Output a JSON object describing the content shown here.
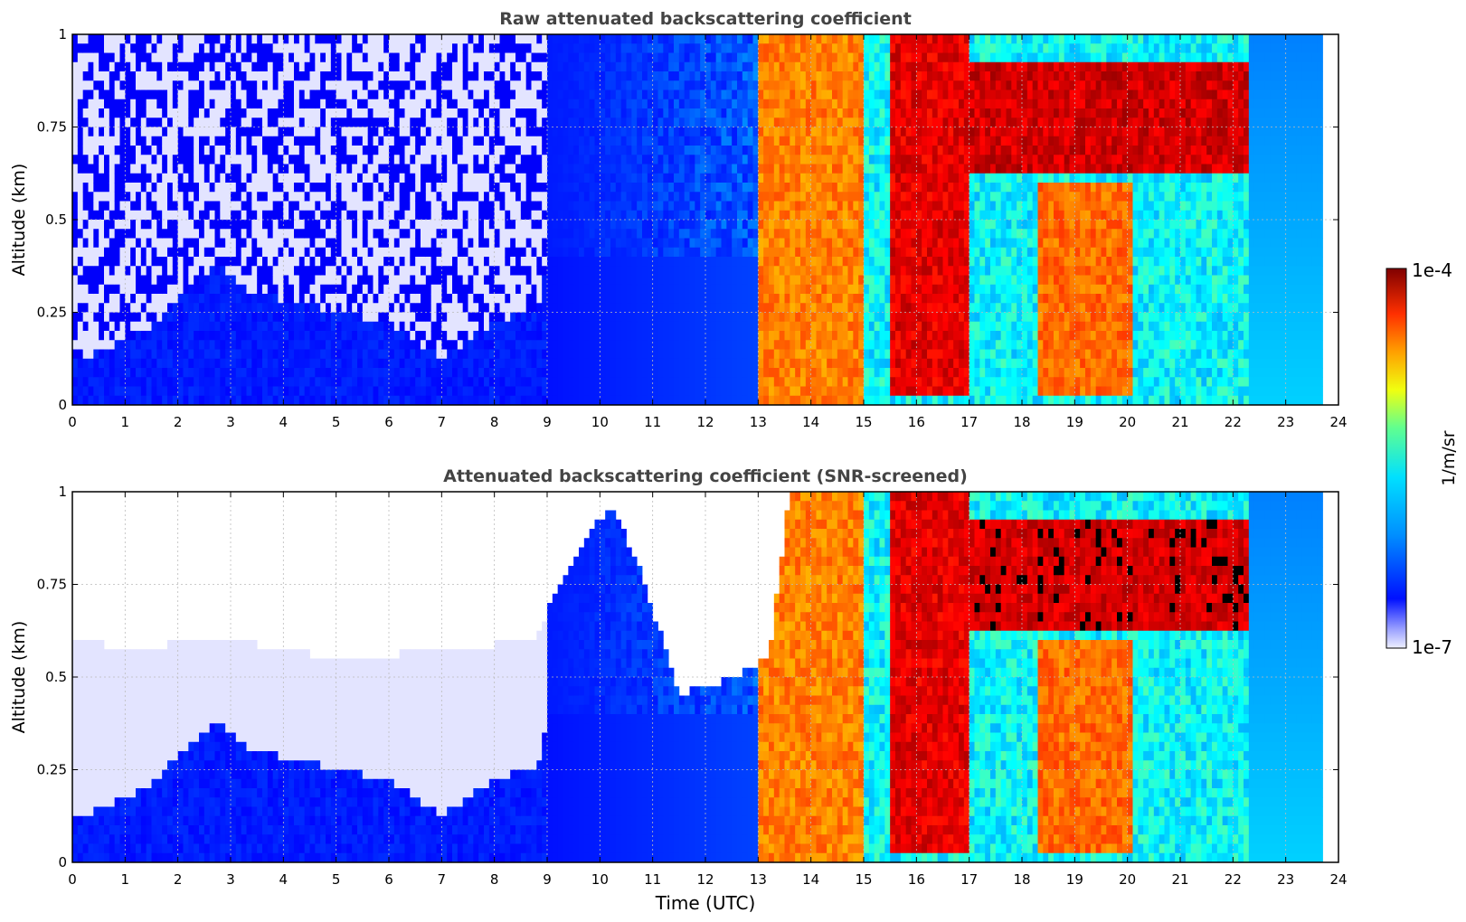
{
  "chart_data": [
    {
      "type": "heatmap",
      "title": "Raw attenuated backscattering coefficient",
      "xlabel": "",
      "ylabel": "Altitude (km)",
      "xlim": [
        0,
        24
      ],
      "ylim": [
        0,
        1
      ],
      "x_ticks": [
        "0",
        "1",
        "2",
        "3",
        "4",
        "5",
        "6",
        "7",
        "8",
        "9",
        "10",
        "11",
        "12",
        "13",
        "14",
        "15",
        "16",
        "17",
        "18",
        "19",
        "20",
        "21",
        "22",
        "23",
        "24"
      ],
      "y_ticks": [
        "0",
        "0.25",
        "0.5",
        "0.75",
        "1"
      ],
      "y_tick_values": [
        0,
        0.25,
        0.5,
        0.75,
        1
      ],
      "grid": true,
      "screened": false,
      "data_extent_hours": [
        0,
        23.65
      ],
      "low_layer_top_km": [
        [
          0,
          0.11
        ],
        [
          1.4,
          0.2
        ],
        [
          2,
          0.29
        ],
        [
          2.8,
          0.38
        ],
        [
          3.4,
          0.3
        ],
        [
          4.5,
          0.27
        ],
        [
          6,
          0.22
        ],
        [
          7,
          0.13
        ],
        [
          8,
          0.22
        ],
        [
          8.9,
          0.27
        ],
        [
          9,
          0.45
        ]
      ],
      "features": [
        {
          "name": "orange/red cloud band",
          "hours": [
            13.0,
            15.0
          ],
          "alt_km": [
            0.0,
            1.0
          ],
          "level": 0.8
        },
        {
          "name": "high-value column",
          "hours": [
            15.5,
            17.0
          ],
          "alt_km": [
            0.03,
            1.0
          ],
          "level": 0.95
        },
        {
          "name": "elevated layer",
          "hours": [
            17.0,
            22.3
          ],
          "alt_km": [
            0.62,
            0.92
          ],
          "level": 0.97
        },
        {
          "name": "lower cloud",
          "hours": [
            18.3,
            20.1
          ],
          "alt_km": [
            0.03,
            0.6
          ],
          "level": 0.82
        }
      ]
    },
    {
      "type": "heatmap",
      "title": "Attenuated backscattering coefficient (SNR-screened)",
      "xlabel": "Time (UTC)",
      "ylabel": "Altitude (km)",
      "xlim": [
        0,
        24
      ],
      "ylim": [
        0,
        1
      ],
      "x_ticks": [
        "0",
        "1",
        "2",
        "3",
        "4",
        "5",
        "6",
        "7",
        "8",
        "9",
        "10",
        "11",
        "12",
        "13",
        "14",
        "15",
        "16",
        "17",
        "18",
        "19",
        "20",
        "21",
        "22",
        "23",
        "24"
      ],
      "y_ticks": [
        "0",
        "0.25",
        "0.5",
        "0.75",
        "1"
      ],
      "y_tick_values": [
        0,
        0.25,
        0.5,
        0.75,
        1
      ],
      "grid": true,
      "screened": true,
      "data_extent_hours": [
        0,
        23.65
      ],
      "screen_top_km": [
        [
          0,
          0.6
        ],
        [
          1,
          0.58
        ],
        [
          3,
          0.6
        ],
        [
          5,
          0.55
        ],
        [
          7,
          0.57
        ],
        [
          8.8,
          0.6
        ],
        [
          9.2,
          0.75
        ],
        [
          10.2,
          0.97
        ],
        [
          10.8,
          0.78
        ],
        [
          11.5,
          0.45
        ],
        [
          12.5,
          0.5
        ],
        [
          13.2,
          0.55
        ],
        [
          13.6,
          1.0
        ]
      ],
      "saturated_value_color": "#000000"
    }
  ],
  "colorbar": {
    "label": "1/m/sr",
    "max_label": "1e-4",
    "min_label": "1e-7",
    "scale": "log",
    "colormap": "jet (white at low end)"
  }
}
